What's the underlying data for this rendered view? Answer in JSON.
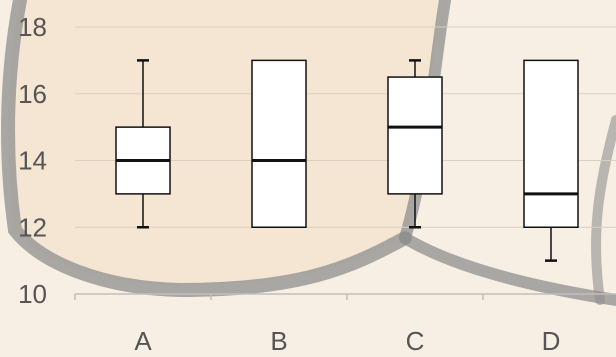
{
  "chart_data": {
    "type": "boxplot",
    "categories": [
      "A",
      "B",
      "C",
      "D"
    ],
    "boxes": [
      {
        "category": "A",
        "min": 12,
        "q1": 13,
        "median": 14,
        "q3": 15,
        "max": 17
      },
      {
        "category": "B",
        "min": 12,
        "q1": 12,
        "median": 14,
        "q3": 17,
        "max": 17
      },
      {
        "category": "C",
        "min": 12,
        "q1": 13,
        "median": 15,
        "q3": 16.5,
        "max": 17
      },
      {
        "category": "D",
        "min": 11,
        "q1": 12,
        "median": 13,
        "q3": 17,
        "max": 17
      }
    ],
    "yticks": [
      10,
      12,
      14,
      16,
      18
    ],
    "ylim": [
      10,
      18
    ],
    "grid": true,
    "legend": "none",
    "colors": {
      "background": "#f7efe3",
      "gridline": "#d9cfc2",
      "box_fill": "#ffffff",
      "box_stroke": "#111111",
      "axis_text": "#555555",
      "decor_stroke": "#8a8a8a"
    }
  }
}
